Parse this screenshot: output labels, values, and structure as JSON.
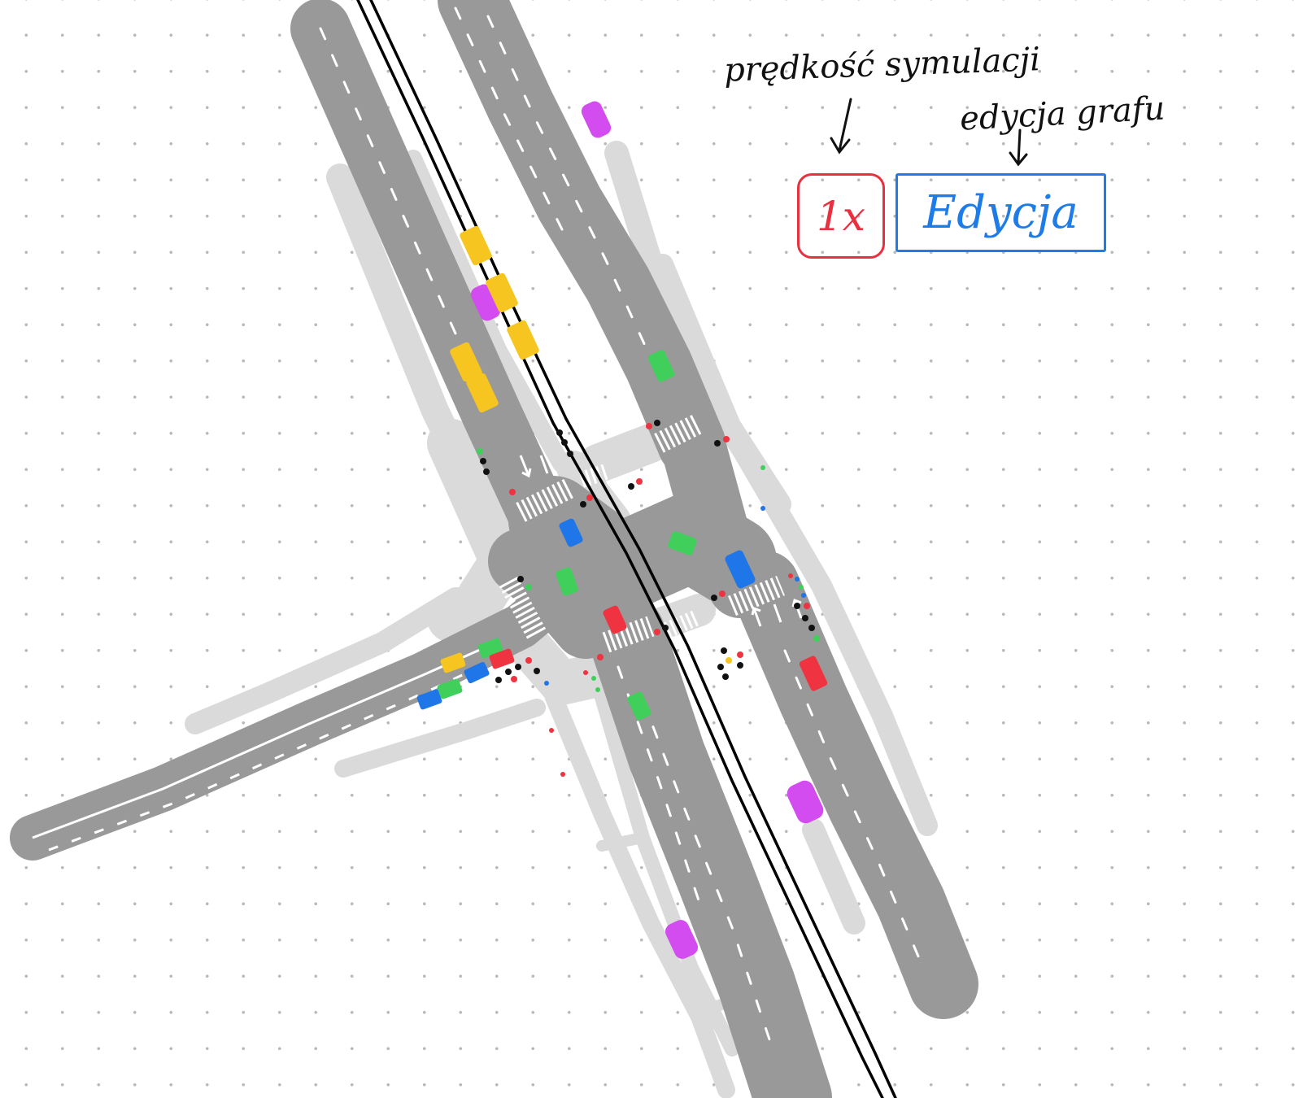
{
  "annotations": {
    "speed_label": "prędkość symulacji",
    "edit_label": "edycja grafu"
  },
  "controls": {
    "speed_value": "1x",
    "edit_label": "Edycja"
  },
  "colors": {
    "road": "#999999",
    "sidewalk": "#d9d9d9",
    "lane_marking": "#ffffff",
    "tram_track": "#000000",
    "speed_accent": "#e8303f",
    "edit_accent": "#1e7ce8",
    "vehicle_yellow": "#f7c520",
    "vehicle_purple": "#d24cf0",
    "vehicle_green": "#3fcf5a",
    "vehicle_blue": "#1f76e8",
    "vehicle_red": "#ef3340"
  },
  "vehicles": [
    {
      "color": "vehicle_purple"
    },
    {
      "color": "vehicle_yellow"
    },
    {
      "color": "vehicle_purple"
    },
    {
      "color": "vehicle_yellow"
    },
    {
      "color": "vehicle_yellow"
    },
    {
      "color": "vehicle_yellow"
    },
    {
      "color": "vehicle_yellow"
    },
    {
      "color": "vehicle_green"
    },
    {
      "color": "vehicle_blue"
    },
    {
      "color": "vehicle_green"
    },
    {
      "color": "vehicle_blue"
    },
    {
      "color": "vehicle_green"
    },
    {
      "color": "vehicle_red"
    },
    {
      "color": "vehicle_red"
    },
    {
      "color": "vehicle_green"
    },
    {
      "color": "vehicle_yellow"
    },
    {
      "color": "vehicle_green"
    },
    {
      "color": "vehicle_red"
    },
    {
      "color": "vehicle_blue"
    },
    {
      "color": "vehicle_green"
    },
    {
      "color": "vehicle_blue"
    },
    {
      "color": "vehicle_purple"
    },
    {
      "color": "vehicle_purple"
    }
  ]
}
